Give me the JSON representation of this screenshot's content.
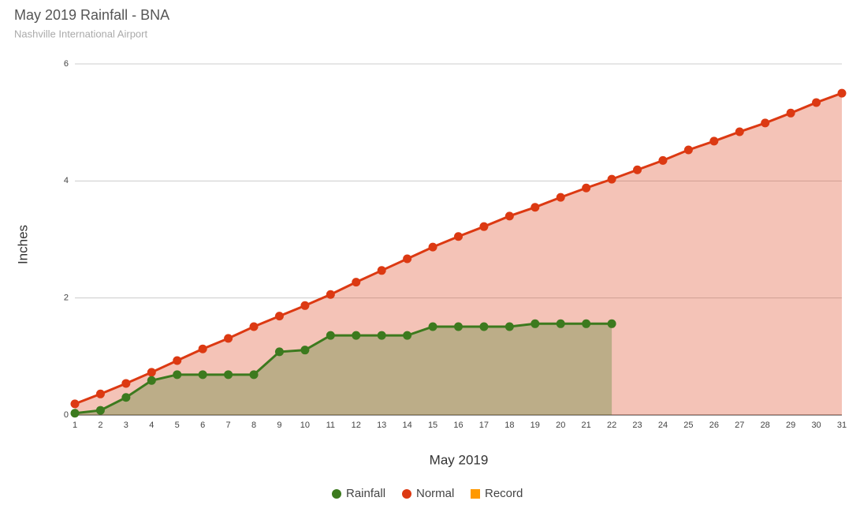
{
  "chart_data": {
    "type": "area",
    "title": "May 2019 Rainfall - BNA",
    "subtitle": "Nashville International Airport",
    "x_label": "May 2019",
    "y_label": "Inches",
    "x": [
      1,
      2,
      3,
      4,
      5,
      6,
      7,
      8,
      9,
      10,
      11,
      12,
      13,
      14,
      15,
      16,
      17,
      18,
      19,
      20,
      21,
      22,
      23,
      24,
      25,
      26,
      27,
      28,
      29,
      30,
      31
    ],
    "xlim": [
      1,
      31
    ],
    "ylim": [
      0,
      6
    ],
    "yticks": [
      0,
      2,
      4,
      6
    ],
    "grid": true,
    "legend": "bottom",
    "series": [
      {
        "name": "Rainfall",
        "color": "#3c7a1e",
        "values": [
          0.03,
          0.08,
          0.3,
          0.59,
          0.69,
          0.69,
          0.69,
          0.69,
          1.08,
          1.11,
          1.36,
          1.36,
          1.36,
          1.36,
          1.51,
          1.51,
          1.51,
          1.51,
          1.56,
          1.56,
          1.56,
          1.56,
          null,
          null,
          null,
          null,
          null,
          null,
          null,
          null,
          null
        ]
      },
      {
        "name": "Normal",
        "color": "#dc3912",
        "values": [
          0.19,
          0.36,
          0.54,
          0.73,
          0.93,
          1.13,
          1.31,
          1.51,
          1.69,
          1.87,
          2.06,
          2.27,
          2.47,
          2.67,
          2.87,
          3.05,
          3.22,
          3.4,
          3.55,
          3.72,
          3.88,
          4.03,
          4.19,
          4.35,
          4.53,
          4.68,
          4.84,
          4.99,
          5.16,
          5.34,
          5.5
        ]
      },
      {
        "name": "Record",
        "color": "#ff9900",
        "values": [
          null,
          null,
          null,
          null,
          null,
          null,
          null,
          null,
          null,
          null,
          null,
          null,
          null,
          null,
          null,
          null,
          null,
          null,
          null,
          null,
          null,
          null,
          null,
          null,
          null,
          null,
          null,
          null,
          null,
          null,
          null
        ]
      }
    ]
  }
}
